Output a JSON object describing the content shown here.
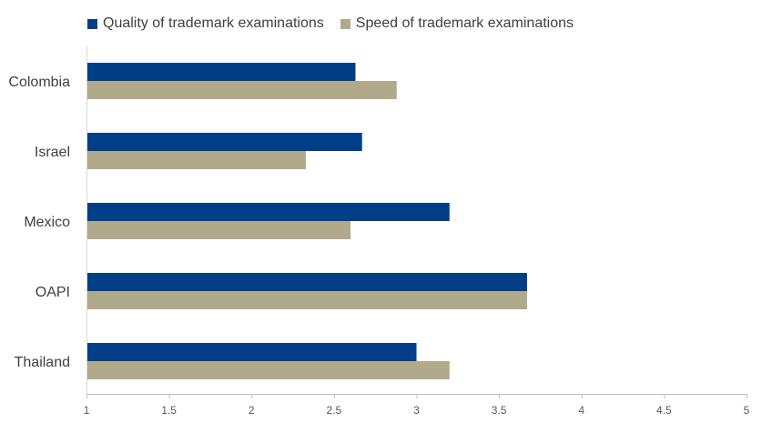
{
  "chart_data": {
    "type": "bar",
    "orientation": "horizontal",
    "categories": [
      "Colombia",
      "Israel",
      "Mexico",
      "OAPI",
      "Thailand"
    ],
    "series": [
      {
        "name": "Quality of trademark examinations",
        "color": "#003f87",
        "values": [
          2.63,
          2.67,
          3.2,
          3.67,
          3.0
        ]
      },
      {
        "name": "Speed of trademark examinations",
        "color": "#b1aa8a",
        "values": [
          2.88,
          2.33,
          2.6,
          3.67,
          3.2
        ]
      }
    ],
    "x_ticks": [
      "1",
      "1.5",
      "2",
      "2.5",
      "3",
      "3.5",
      "4",
      "4.5",
      "5"
    ],
    "xlim": [
      1,
      5
    ],
    "title": "",
    "xlabel": "",
    "ylabel": "",
    "grid": false,
    "legend_position": "top-left"
  }
}
